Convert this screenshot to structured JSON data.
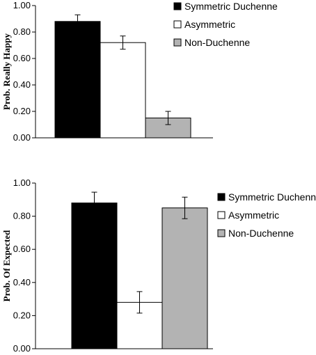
{
  "chart_data": [
    {
      "type": "bar",
      "categories": [
        "Symmetric Duchenne",
        "Asymmetric",
        "Non-Duchenne"
      ],
      "values": [
        0.88,
        0.72,
        0.15
      ],
      "errors": [
        0.05,
        0.05,
        0.05
      ],
      "colors": [
        "#000000",
        "#ffffff",
        "#b3b3b3"
      ],
      "title": "",
      "xlabel": "",
      "ylabel": "Prob. Really Happy",
      "ylim": [
        0,
        1
      ],
      "yticks": [
        "0.00",
        "0.20",
        "0.40",
        "0.60",
        "0.80",
        "1.00"
      ],
      "legend": [
        "Symmetric Duchenne",
        "Asymmetric",
        "Non-Duchenne"
      ],
      "legend_position": "top-right",
      "grid": false
    },
    {
      "type": "bar",
      "categories": [
        "Symmetric Duchenne",
        "Asymmetric",
        "Non-Duchenne"
      ],
      "values": [
        0.88,
        0.28,
        0.85
      ],
      "errors": [
        0.065,
        0.065,
        0.065
      ],
      "colors": [
        "#000000",
        "#ffffff",
        "#b3b3b3"
      ],
      "title": "",
      "xlabel": "",
      "ylabel": "Prob. Of Expected",
      "ylim": [
        0,
        1
      ],
      "yticks": [
        "0.00",
        "0.20",
        "0.40",
        "0.60",
        "0.80",
        "1.00"
      ],
      "legend": [
        "Symmetric Duchenne",
        "Asymmetric",
        "Non-Duchenne"
      ],
      "legend_position": "top-right",
      "grid": false
    }
  ]
}
